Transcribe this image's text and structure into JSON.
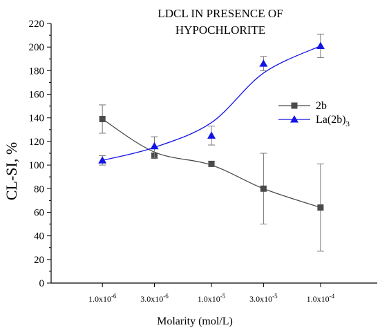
{
  "chart_data": {
    "type": "line",
    "title_lines": [
      "LDCL IN PRESENCE OF",
      "HYPOCHLORITE"
    ],
    "xlabel": "Molarity (mol/L)",
    "ylabel": "CL-SI, %",
    "ylim": [
      0,
      220
    ],
    "yticks": [
      0,
      20,
      40,
      60,
      80,
      100,
      120,
      140,
      160,
      180,
      200,
      220
    ],
    "x_scale": "log",
    "x": [
      1e-06,
      3e-06,
      1e-05,
      3e-05,
      0.0001
    ],
    "x_tick_labels": [
      {
        "mant": "1.0x10",
        "exp": "-6"
      },
      {
        "mant": "3.0x10",
        "exp": "-6"
      },
      {
        "mant": "1.0x10",
        "exp": "-5"
      },
      {
        "mant": "3.0x10",
        "exp": "-5"
      },
      {
        "mant": "1.0x10",
        "exp": "-4"
      }
    ],
    "series": [
      {
        "name": "2b",
        "marker": "square",
        "color": "#4a4a4a",
        "values": [
          139,
          108,
          101,
          80,
          64
        ],
        "err_low": [
          127,
          106,
          99,
          50,
          27
        ],
        "err_high": [
          151,
          110,
          103,
          110,
          101
        ],
        "fit": [
          139,
          111,
          100,
          80,
          64
        ]
      },
      {
        "name": "La(2b)3",
        "legend_base": "La(2b)",
        "legend_sub": "3",
        "marker": "triangle",
        "color": "#1414e6",
        "values": [
          104,
          116,
          125,
          186,
          201
        ],
        "err_low": [
          100,
          106,
          117,
          180,
          191
        ],
        "err_high": [
          108,
          124,
          133,
          192,
          211
        ],
        "fit": [
          104,
          115,
          136,
          178,
          201
        ]
      }
    ],
    "legend_position": "right",
    "grid": false
  }
}
